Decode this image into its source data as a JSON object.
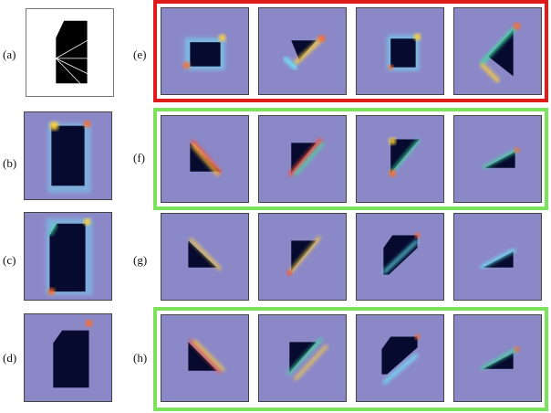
{
  "colors": {
    "background_map": "#8b88c8",
    "shape": "#050a2e",
    "frame_red": "#e01b1b",
    "frame_green": "#7ce25c"
  },
  "labels": {
    "a": "(a)",
    "b": "(b)",
    "c": "(c)",
    "d": "(d)",
    "e": "(e)",
    "f": "(f)",
    "g": "(g)",
    "h": "(h)"
  },
  "frames": {
    "e": "red",
    "f": "green",
    "g": "none",
    "h": "green"
  }
}
